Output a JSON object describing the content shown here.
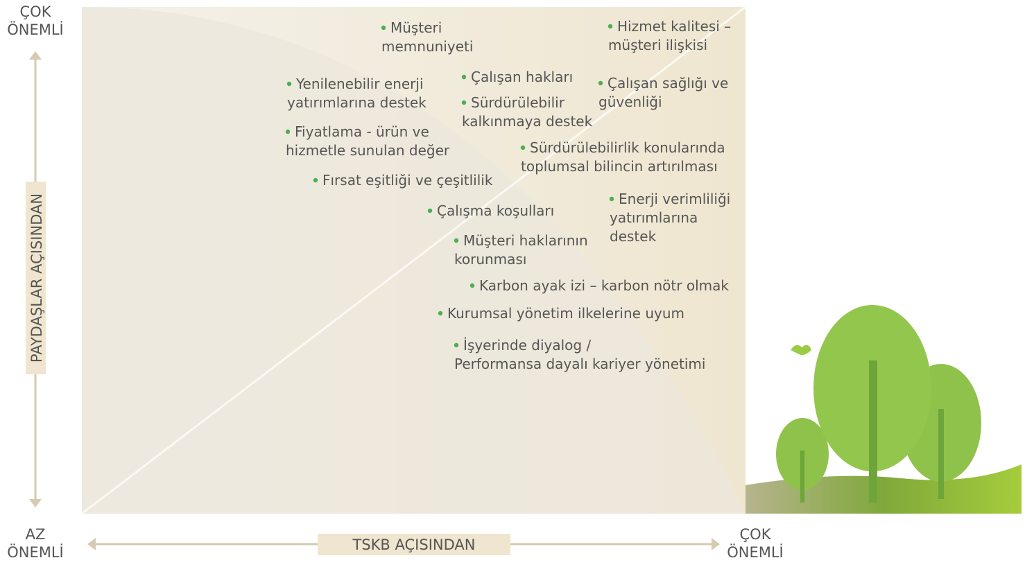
{
  "y_axis": {
    "label": "PAYDAŞLAR AÇISINDAN",
    "top": [
      "ÇOK",
      "ÖNEMLİ"
    ],
    "bottom": [
      "AZ",
      "ÖNEMLİ"
    ]
  },
  "x_axis": {
    "label": "TSKB AÇISINDAN",
    "right": [
      "ÇOK",
      "ÖNEMLİ"
    ]
  },
  "issues": [
    [
      "Müşteri",
      "memnuniyeti"
    ],
    [
      "Hizmet kalitesi –",
      "müşteri ilişkisi"
    ],
    [
      "Yenilenebilir enerji",
      "yatırımlarına destek"
    ],
    [
      "Çalışan hakları"
    ],
    [
      "Çalışan sağlığı ve",
      "güvenliği"
    ],
    [
      "Sürdürülebilir",
      "kalkınmaya destek"
    ],
    [
      "Fiyatlama -  ürün ve",
      "hizmetle sunulan değer"
    ],
    [
      "Sürdürülebilirlik konularında",
      "toplumsal bilincin artırılması"
    ],
    [
      "Fırsat eşitliği ve çeşitlilik"
    ],
    [
      "Enerji verimliliği",
      "yatırımlarına",
      "destek"
    ],
    [
      "Çalışma koşulları"
    ],
    [
      "Müşteri haklarının",
      "korunması"
    ],
    [
      "Karbon ayak izi – karbon nötr olmak"
    ],
    [
      "Kurumsal yönetim ilkelerine uyum"
    ],
    [
      "İşyerinde diyalog /",
      "Performansa dayalı kariyer yönetimi"
    ]
  ]
}
